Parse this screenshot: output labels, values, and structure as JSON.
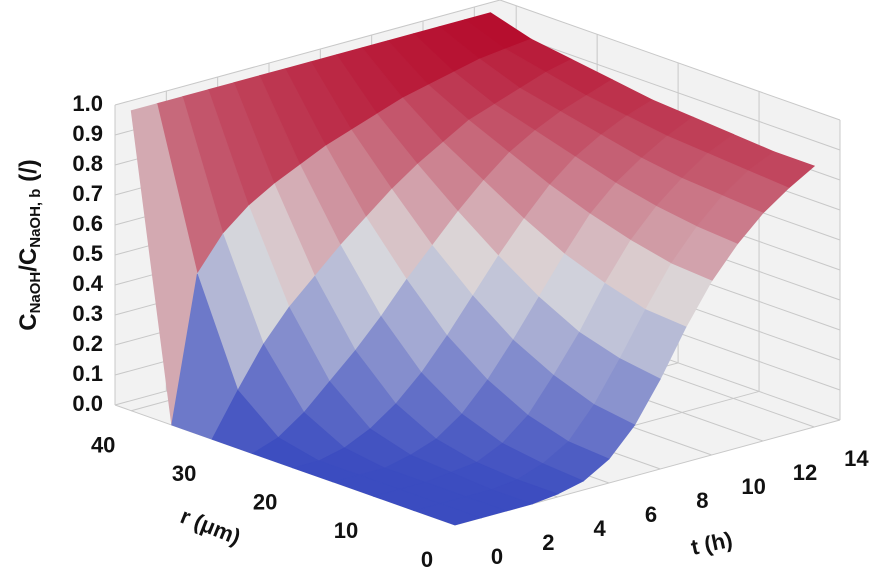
{
  "chart_data": {
    "type": "surface",
    "colormap": "coolwarm",
    "r": [
      0,
      5,
      10,
      15,
      20,
      25,
      30,
      35,
      40
    ],
    "t": [
      0,
      1,
      2,
      3,
      4,
      5,
      6,
      7,
      8,
      9,
      10,
      11,
      12,
      13,
      14
    ],
    "z": [
      [
        0,
        0,
        0,
        0,
        0.01,
        0.03,
        0.08,
        0.17,
        0.3,
        0.45,
        0.58,
        0.68,
        0.76,
        0.82,
        0.87
      ],
      [
        0,
        0,
        0,
        0,
        0.01,
        0.04,
        0.09,
        0.19,
        0.32,
        0.46,
        0.59,
        0.69,
        0.77,
        0.83,
        0.87
      ],
      [
        0,
        0,
        0,
        0.01,
        0.02,
        0.06,
        0.13,
        0.24,
        0.36,
        0.5,
        0.62,
        0.71,
        0.78,
        0.84,
        0.88
      ],
      [
        0,
        0,
        0,
        0.02,
        0.05,
        0.11,
        0.2,
        0.31,
        0.43,
        0.55,
        0.66,
        0.74,
        0.8,
        0.85,
        0.89
      ],
      [
        0,
        0,
        0.02,
        0.06,
        0.12,
        0.2,
        0.3,
        0.41,
        0.52,
        0.62,
        0.71,
        0.78,
        0.83,
        0.87,
        0.9
      ],
      [
        0,
        0.03,
        0.09,
        0.17,
        0.25,
        0.34,
        0.44,
        0.53,
        0.62,
        0.7,
        0.77,
        0.82,
        0.86,
        0.89,
        0.92
      ],
      [
        0,
        0.14,
        0.27,
        0.37,
        0.45,
        0.53,
        0.6,
        0.67,
        0.73,
        0.78,
        0.83,
        0.86,
        0.89,
        0.92,
        0.94
      ],
      [
        0,
        0.48,
        0.59,
        0.66,
        0.71,
        0.75,
        0.79,
        0.82,
        0.85,
        0.88,
        0.9,
        0.92,
        0.94,
        0.95,
        0.96
      ],
      [
        1,
        1,
        1,
        1,
        1,
        1,
        1,
        1,
        1,
        1,
        1,
        1,
        1,
        1,
        1
      ]
    ],
    "rlim": [
      0,
      42
    ],
    "tlim": [
      0,
      15
    ],
    "zlim": [
      0,
      1
    ],
    "rticks": [
      0,
      10,
      20,
      30,
      40
    ],
    "tticks": [
      0,
      2,
      4,
      6,
      8,
      10,
      12,
      14
    ],
    "zticks": [
      {
        "value": 0,
        "label": "0.0"
      },
      0.1,
      0.2,
      0.3,
      0.4,
      0.5,
      0.6,
      0.7,
      0.8,
      0.9,
      {
        "value": 1,
        "label": "1.0"
      }
    ],
    "rlabel": "r (μm)",
    "tlabel": "t (h)",
    "zlabel": [
      "C",
      "NaOH",
      "/C",
      "NaOH, b",
      " (/)"
    ]
  }
}
